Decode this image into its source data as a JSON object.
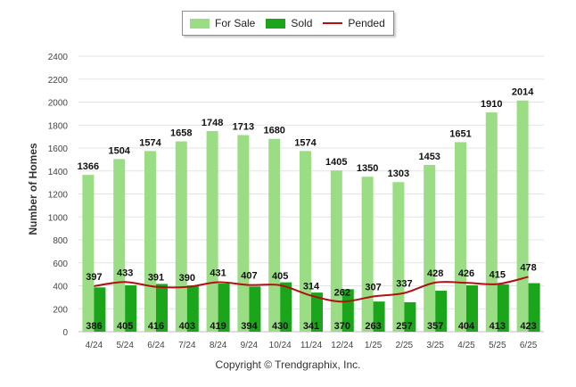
{
  "chart_data": {
    "type": "bar",
    "ylabel": "Number of Homes",
    "ylim": [
      0,
      2400
    ],
    "yticks": [
      0,
      200,
      400,
      600,
      800,
      1000,
      1200,
      1400,
      1600,
      1800,
      2000,
      2200,
      2400
    ],
    "categories": [
      "4/24",
      "5/24",
      "6/24",
      "7/24",
      "8/24",
      "9/24",
      "10/24",
      "11/24",
      "12/24",
      "1/25",
      "2/25",
      "3/25",
      "4/25",
      "5/25",
      "6/25"
    ],
    "series": [
      {
        "name": "For Sale",
        "type": "bar",
        "color": "#9bdd85",
        "values": [
          1366,
          1504,
          1574,
          1658,
          1748,
          1713,
          1680,
          1574,
          1405,
          1350,
          1303,
          1453,
          1651,
          1910,
          2014
        ]
      },
      {
        "name": "Sold",
        "type": "bar",
        "color": "#1aa51a",
        "values": [
          386,
          405,
          416,
          403,
          419,
          394,
          430,
          341,
          370,
          263,
          257,
          357,
          404,
          413,
          423
        ]
      },
      {
        "name": "Pended",
        "type": "line",
        "color": "#b01010",
        "values": [
          397,
          433,
          391,
          390,
          431,
          407,
          405,
          314,
          262,
          307,
          337,
          428,
          426,
          415,
          478
        ]
      }
    ],
    "legend_position": "top-center",
    "grid": true
  },
  "copyright": "Copyright © Trendgraphix, Inc."
}
